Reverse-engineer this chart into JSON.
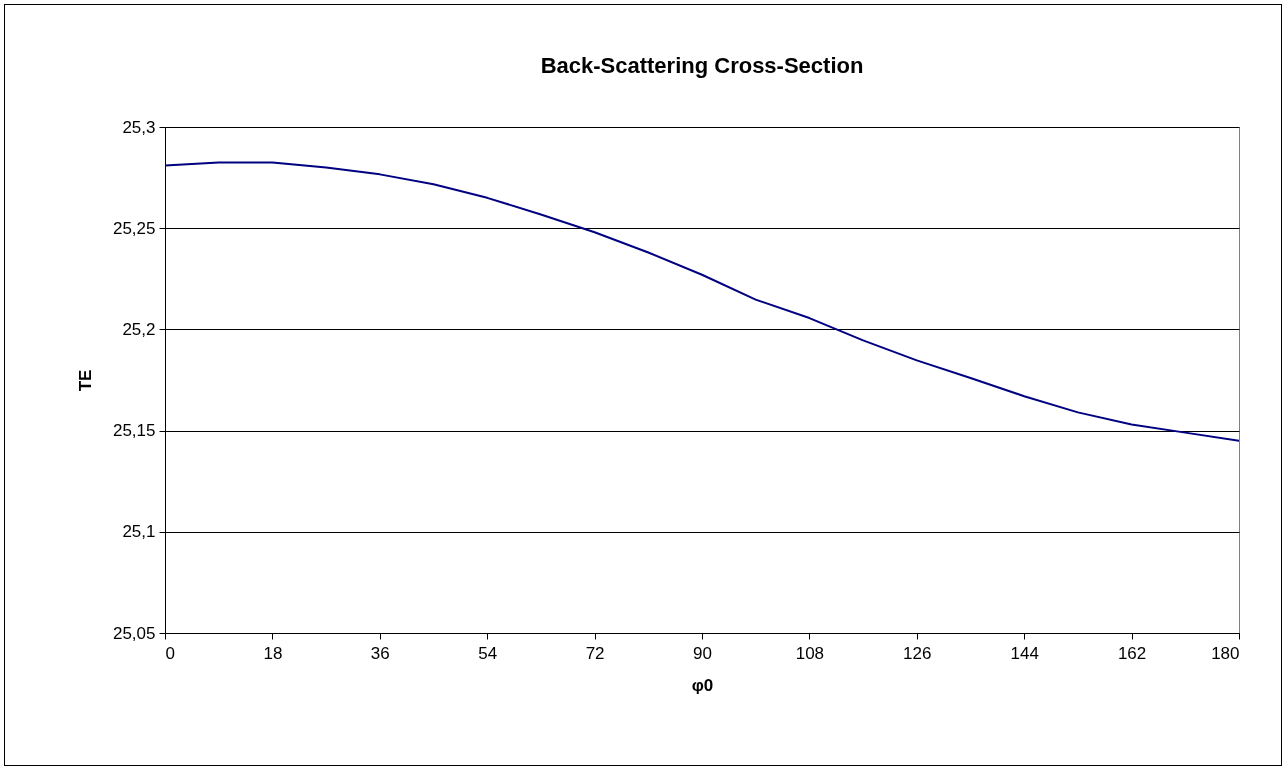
{
  "chart_data": {
    "type": "line",
    "title": "Back-Scattering Cross-Section",
    "xlabel": "φ0",
    "ylabel": "TE",
    "x": [
      0,
      9,
      18,
      27,
      36,
      45,
      54,
      63,
      72,
      81,
      90,
      99,
      108,
      117,
      126,
      135,
      144,
      153,
      162,
      171,
      180
    ],
    "series": [
      {
        "color": "#000080",
        "values": [
          25.281,
          25.2825,
          25.2825,
          25.28,
          25.2766,
          25.2717,
          25.265,
          25.2568,
          25.248,
          25.238,
          25.227,
          25.2147,
          25.2056,
          25.1946,
          25.1847,
          25.176,
          25.167,
          25.159,
          25.153,
          25.149,
          25.145
        ]
      }
    ],
    "xlim": [
      0,
      180
    ],
    "xticks": [
      0,
      18,
      36,
      54,
      72,
      90,
      108,
      126,
      144,
      162,
      180
    ],
    "ylim": [
      25.05,
      25.3
    ],
    "yticks": [
      {
        "value": 25.05,
        "label": "25,05"
      },
      {
        "value": 25.1,
        "label": "25,1"
      },
      {
        "value": 25.15,
        "label": "25,15"
      },
      {
        "value": 25.2,
        "label": "25,2"
      },
      {
        "value": 25.25,
        "label": "25,25"
      },
      {
        "value": 25.3,
        "label": "25,3"
      }
    ],
    "grid": "y",
    "marker": "none",
    "line_style": "solid"
  }
}
